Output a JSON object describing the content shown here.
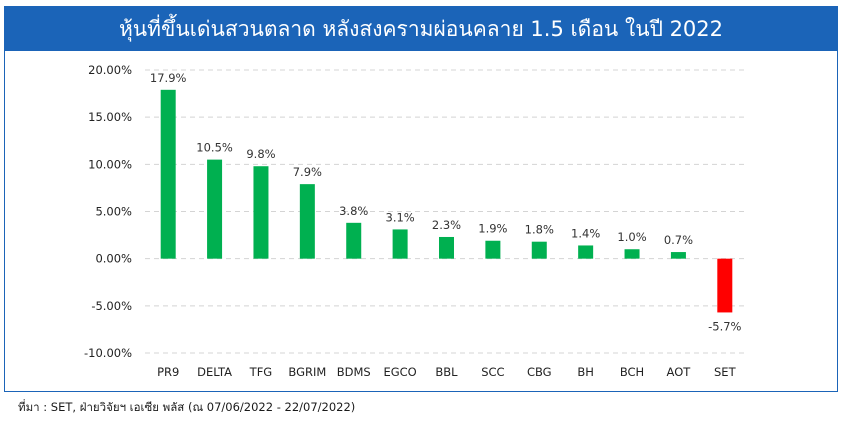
{
  "title": "หุ้นที่ขึ้นเด่นสวนตลาด หลังสงครามผ่อนคลาย 1.5 เดือน ในปี 2022",
  "source": "ที่มา : SET, ฝ่ายวิจัยฯ เอเซีย พลัส (ณ 07/06/2022 - 22/07/2022)",
  "colors": {
    "accent": "#1b64b8",
    "positive": "#00b050",
    "negative": "#ff0000"
  },
  "chart_data": {
    "type": "bar",
    "categories": [
      "PR9",
      "DELTA",
      "TFG",
      "BGRIM",
      "BDMS",
      "EGCO",
      "BBL",
      "SCC",
      "CBG",
      "BH",
      "BCH",
      "AOT",
      "SET"
    ],
    "values": [
      17.9,
      10.5,
      9.8,
      7.9,
      3.8,
      3.1,
      2.3,
      1.9,
      1.8,
      1.4,
      1.0,
      0.7,
      -5.7
    ],
    "data_labels": [
      "17.9%",
      "10.5%",
      "9.8%",
      "7.9%",
      "3.8%",
      "3.1%",
      "2.3%",
      "1.9%",
      "1.8%",
      "1.4%",
      "1.0%",
      "0.7%",
      "-5.7%"
    ],
    "y_ticks": [
      20,
      15,
      10,
      5,
      0,
      -5,
      -10
    ],
    "y_tick_labels": [
      "20.00%",
      "15.00%",
      "10.00%",
      "5.00%",
      "0.00%",
      "-5.00%",
      "-10.00%"
    ],
    "ylim": [
      -10,
      20
    ],
    "grid": true,
    "legend": "none"
  }
}
